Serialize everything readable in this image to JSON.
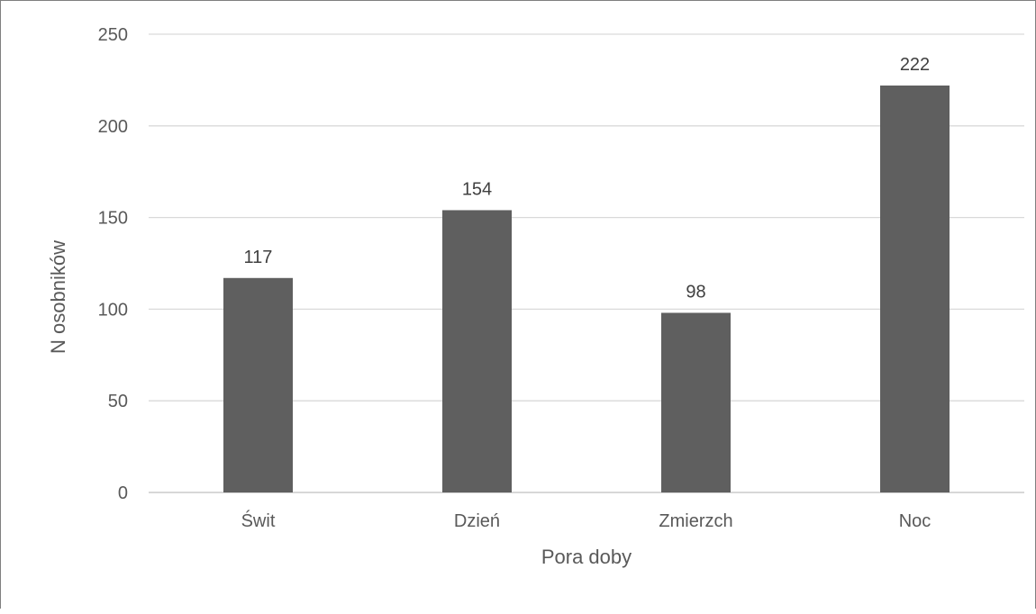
{
  "chart_data": {
    "type": "bar",
    "categories": [
      "Świt",
      "Dzień",
      "Zmierzch",
      "Noc"
    ],
    "values": [
      117,
      154,
      98,
      222
    ],
    "data_labels": [
      "117",
      "154",
      "98",
      "222"
    ],
    "title": "",
    "xlabel": "Pora doby",
    "ylabel": "N osobników",
    "ylim": [
      0,
      250
    ],
    "yticks": [
      "0",
      "50",
      "100",
      "150",
      "200",
      "250"
    ],
    "grid": "horizontal",
    "legend": "none",
    "bar_color": "#5f5f5f",
    "gridline_color": "#d9d9d9",
    "text_color": "#595959"
  }
}
